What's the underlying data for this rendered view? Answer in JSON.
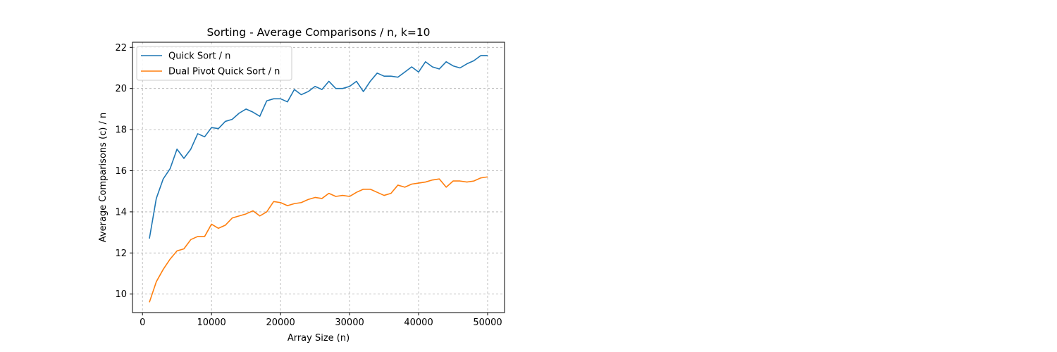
{
  "chart_data": {
    "type": "line",
    "title": "Sorting - Average Comparisons / n, k=10",
    "xlabel": "Array Size (n)",
    "ylabel": "Average Comparisons (c) / n",
    "xlim": [
      -1450,
      52450
    ],
    "ylim": [
      9.1,
      22.25
    ],
    "xticks": [
      0,
      10000,
      20000,
      30000,
      40000,
      50000
    ],
    "xtick_labels": [
      "0",
      "10000",
      "20000",
      "30000",
      "40000",
      "50000"
    ],
    "yticks": [
      10,
      12,
      14,
      16,
      18,
      20,
      22
    ],
    "ytick_labels": [
      "10",
      "12",
      "14",
      "16",
      "18",
      "20",
      "22"
    ],
    "grid": true,
    "legend_position": "top-left",
    "x": [
      1000,
      2000,
      3000,
      4000,
      5000,
      6000,
      7000,
      8000,
      9000,
      10000,
      11000,
      12000,
      13000,
      14000,
      15000,
      16000,
      17000,
      18000,
      19000,
      20000,
      21000,
      22000,
      23000,
      24000,
      25000,
      26000,
      27000,
      28000,
      29000,
      30000,
      31000,
      32000,
      33000,
      34000,
      35000,
      36000,
      37000,
      38000,
      39000,
      40000,
      41000,
      42000,
      43000,
      44000,
      45000,
      46000,
      47000,
      48000,
      49000,
      50000
    ],
    "series": [
      {
        "name": "Quick Sort / n",
        "color": "#1f77b4",
        "values": [
          12.7,
          14.65,
          15.6,
          16.1,
          17.05,
          16.6,
          17.05,
          17.8,
          17.65,
          18.1,
          18.05,
          18.4,
          18.5,
          18.8,
          19.0,
          18.85,
          18.65,
          19.4,
          19.5,
          19.5,
          19.35,
          19.95,
          19.7,
          19.85,
          20.1,
          19.95,
          20.35,
          20.0,
          20.0,
          20.1,
          20.35,
          19.85,
          20.35,
          20.75,
          20.6,
          20.6,
          20.55,
          20.8,
          21.05,
          20.8,
          21.3,
          21.05,
          20.95,
          21.3,
          21.1,
          21.0,
          21.2,
          21.35,
          21.6,
          21.6
        ]
      },
      {
        "name": "Dual Pivot Quick Sort / n",
        "color": "#ff7f0e",
        "values": [
          9.6,
          10.6,
          11.2,
          11.7,
          12.1,
          12.2,
          12.65,
          12.8,
          12.8,
          13.4,
          13.2,
          13.35,
          13.7,
          13.8,
          13.9,
          14.05,
          13.8,
          14.0,
          14.5,
          14.45,
          14.3,
          14.4,
          14.45,
          14.6,
          14.7,
          14.65,
          14.9,
          14.75,
          14.8,
          14.75,
          14.95,
          15.1,
          15.1,
          14.95,
          14.8,
          14.9,
          15.3,
          15.2,
          15.35,
          15.4,
          15.45,
          15.55,
          15.6,
          15.2,
          15.5,
          15.5,
          15.45,
          15.5,
          15.65,
          15.7
        ]
      }
    ]
  }
}
